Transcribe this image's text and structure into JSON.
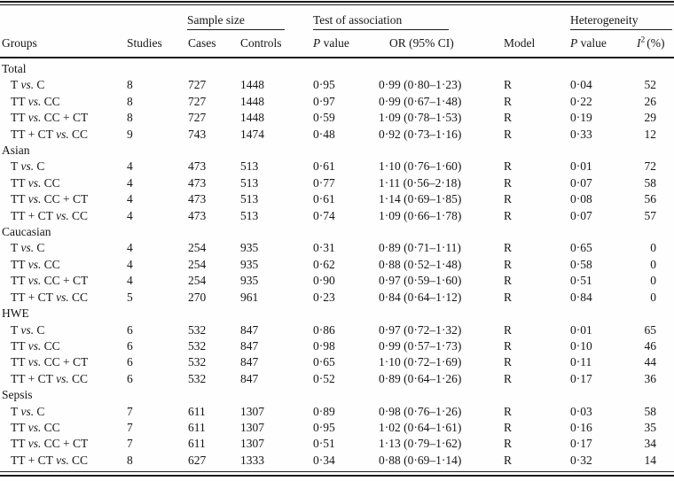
{
  "header": {
    "groups": "Groups",
    "studies": "Studies",
    "sample_size": "Sample size",
    "cases": "Cases",
    "controls": "Controls",
    "test_of_association": "Test of association",
    "p_italic": "P",
    "value_word": "value",
    "or_ci": "OR (95% CI)",
    "model": "Model",
    "heterogeneity": "Heterogeneity",
    "i_symbol": "I",
    "i_exponent": "2",
    "i_percent": "(%)"
  },
  "vs_label": "vs.",
  "sections": [
    {
      "group": "Total",
      "rows": [
        {
          "left": "T",
          "right": "C",
          "studies": "8",
          "cases": "727",
          "controls": "1448",
          "p_assoc": "0·95",
          "or_ci": "0·99 (0·80–1·23)",
          "model": "R",
          "p_het": "0·04",
          "i2": "52"
        },
        {
          "left": "TT",
          "right": "CC",
          "studies": "8",
          "cases": "727",
          "controls": "1448",
          "p_assoc": "0·97",
          "or_ci": "0·99 (0·67–1·48)",
          "model": "R",
          "p_het": "0·22",
          "i2": "26"
        },
        {
          "left": "TT",
          "right": "CC + CT",
          "studies": "8",
          "cases": "727",
          "controls": "1448",
          "p_assoc": "0·59",
          "or_ci": "1·09 (0·78–1·53)",
          "model": "R",
          "p_het": "0·19",
          "i2": "29"
        },
        {
          "left": "TT + CT",
          "right": "CC",
          "studies": "9",
          "cases": "743",
          "controls": "1474",
          "p_assoc": "0·48",
          "or_ci": "0·92 (0·73–1·16)",
          "model": "R",
          "p_het": "0·33",
          "i2": "12"
        }
      ]
    },
    {
      "group": "Asian",
      "rows": [
        {
          "left": "T",
          "right": "C",
          "studies": "4",
          "cases": "473",
          "controls": "513",
          "p_assoc": "0·61",
          "or_ci": "1·10 (0·76–1·60)",
          "model": "R",
          "p_het": "0·01",
          "i2": "72"
        },
        {
          "left": "TT",
          "right": "CC",
          "studies": "4",
          "cases": "473",
          "controls": "513",
          "p_assoc": "0·77",
          "or_ci": "1·11 (0·56–2·18)",
          "model": "R",
          "p_het": "0·07",
          "i2": "58"
        },
        {
          "left": "TT",
          "right": "CC + CT",
          "studies": "4",
          "cases": "473",
          "controls": "513",
          "p_assoc": "0·61",
          "or_ci": "1·14 (0·69–1·85)",
          "model": "R",
          "p_het": "0·08",
          "i2": "56"
        },
        {
          "left": "TT + CT",
          "right": "CC",
          "studies": "4",
          "cases": "473",
          "controls": "513",
          "p_assoc": "0·74",
          "or_ci": "1·09 (0·66–1·78)",
          "model": "R",
          "p_het": "0·07",
          "i2": "57"
        }
      ]
    },
    {
      "group": "Caucasian",
      "rows": [
        {
          "left": "T",
          "right": "C",
          "studies": "4",
          "cases": "254",
          "controls": "935",
          "p_assoc": "0·31",
          "or_ci": "0·89 (0·71–1·11)",
          "model": "R",
          "p_het": "0·65",
          "i2": "0"
        },
        {
          "left": "TT",
          "right": "CC",
          "studies": "4",
          "cases": "254",
          "controls": "935",
          "p_assoc": "0·62",
          "or_ci": "0·88 (0·52–1·48)",
          "model": "R",
          "p_het": "0·58",
          "i2": "0"
        },
        {
          "left": "TT",
          "right": "CC + CT",
          "studies": "4",
          "cases": "254",
          "controls": "935",
          "p_assoc": "0·90",
          "or_ci": "0·97 (0·59–1·60)",
          "model": "R",
          "p_het": "0·51",
          "i2": "0"
        },
        {
          "left": "TT + CT",
          "right": "CC",
          "studies": "5",
          "cases": "270",
          "controls": "961",
          "p_assoc": "0·23",
          "or_ci": "0·84 (0·64–1·12)",
          "model": "R",
          "p_het": "0·84",
          "i2": "0"
        }
      ]
    },
    {
      "group": "HWE",
      "rows": [
        {
          "left": "T",
          "right": "C",
          "studies": "6",
          "cases": "532",
          "controls": "847",
          "p_assoc": "0·86",
          "or_ci": "0·97 (0·72–1·32)",
          "model": "R",
          "p_het": "0·01",
          "i2": "65"
        },
        {
          "left": "TT",
          "right": "CC",
          "studies": "6",
          "cases": "532",
          "controls": "847",
          "p_assoc": "0·98",
          "or_ci": "0·99 (0·57–1·73)",
          "model": "R",
          "p_het": "0·10",
          "i2": "46"
        },
        {
          "left": "TT",
          "right": "CC + CT",
          "studies": "6",
          "cases": "532",
          "controls": "847",
          "p_assoc": "0·65",
          "or_ci": "1·10 (0·72–1·69)",
          "model": "R",
          "p_het": "0·11",
          "i2": "44"
        },
        {
          "left": "TT + CT",
          "right": "CC",
          "studies": "6",
          "cases": "532",
          "controls": "847",
          "p_assoc": "0·52",
          "or_ci": "0·89 (0·64–1·26)",
          "model": "R",
          "p_het": "0·17",
          "i2": "36"
        }
      ]
    },
    {
      "group": "Sepsis",
      "rows": [
        {
          "left": "T",
          "right": "C",
          "studies": "7",
          "cases": "611",
          "controls": "1307",
          "p_assoc": "0·89",
          "or_ci": "0·98 (0·76–1·26)",
          "model": "R",
          "p_het": "0·03",
          "i2": "58"
        },
        {
          "left": "TT",
          "right": "CC",
          "studies": "7",
          "cases": "611",
          "controls": "1307",
          "p_assoc": "0·95",
          "or_ci": "1·02 (0·64–1·61)",
          "model": "R",
          "p_het": "0·16",
          "i2": "35"
        },
        {
          "left": "TT",
          "right": "CC + CT",
          "studies": "7",
          "cases": "611",
          "controls": "1307",
          "p_assoc": "0·51",
          "or_ci": "1·13 (0·79–1·62)",
          "model": "R",
          "p_het": "0·17",
          "i2": "34"
        },
        {
          "left": "TT + CT",
          "right": "CC",
          "studies": "8",
          "cases": "627",
          "controls": "1333",
          "p_assoc": "0·34",
          "or_ci": "0·88 (0·69–1·14)",
          "model": "R",
          "p_het": "0·32",
          "i2": "14"
        }
      ]
    }
  ]
}
